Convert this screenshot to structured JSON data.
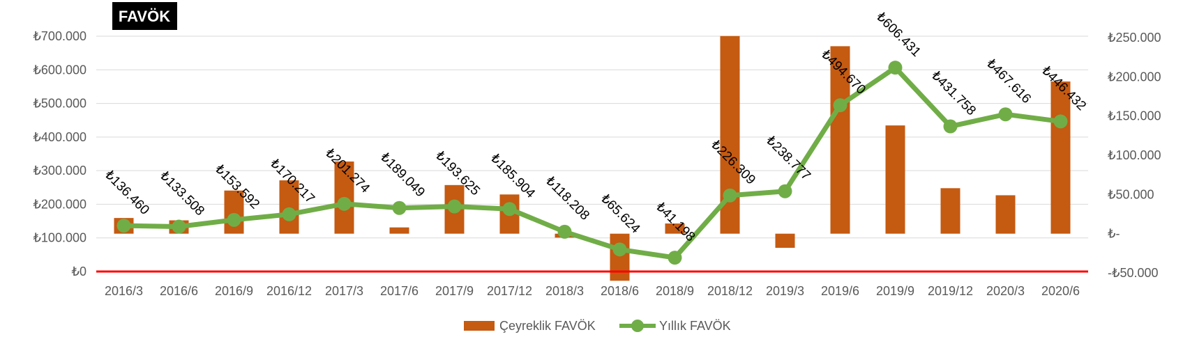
{
  "chart_data": {
    "type": "bar",
    "title": "FAVÖK",
    "categories": [
      "2016/3",
      "2016/6",
      "2016/9",
      "2016/12",
      "2017/3",
      "2017/6",
      "2017/9",
      "2017/12",
      "2018/3",
      "2018/6",
      "2018/9",
      "2018/12",
      "2019/3",
      "2019/6",
      "2019/9",
      "2019/12",
      "2020/3",
      "2020/6"
    ],
    "series": [
      {
        "name": "Çeyreklik FAVÖK",
        "type": "bar",
        "axis": "left",
        "color": "#C55A11",
        "values": [
          20000,
          17000,
          55000,
          68000,
          92000,
          8000,
          62000,
          50000,
          -5000,
          -60000,
          13000,
          252000,
          -18000,
          239000,
          138000,
          58000,
          49000,
          194000
        ]
      },
      {
        "name": "Yıllık FAVÖK",
        "type": "line",
        "axis": "right",
        "color": "#70AD47",
        "values": [
          136460,
          133508,
          153592,
          170217,
          201274,
          189049,
          193625,
          185904,
          118208,
          65624,
          41198,
          226309,
          238777,
          494670,
          606431,
          431758,
          467616,
          446432
        ],
        "labels": [
          "₺136.460",
          "₺133.508",
          "₺153.592",
          "₺170.217",
          "₺201.274",
          "₺189.049",
          "₺193.625",
          "₺185.904",
          "₺118.208",
          "₺65.624",
          "₺41.198",
          "₺226.309",
          "₺238.777",
          "₺494.670",
          "₺606.431",
          "₺431.758",
          "₺467.616",
          "₺446.432"
        ]
      }
    ],
    "left_axis": {
      "ticks": [
        0,
        100000,
        200000,
        300000,
        400000,
        500000,
        600000,
        700000
      ],
      "tick_labels": [
        "₺0",
        "₺100.000",
        "₺200.000",
        "₺300.000",
        "₺400.000",
        "₺500.000",
        "₺600.000",
        "₺700.000"
      ]
    },
    "right_axis": {
      "ticks": [
        -50000,
        0,
        50000,
        100000,
        150000,
        200000,
        250000
      ],
      "tick_labels": [
        "-₺50.000",
        "₺-",
        "₺50.000",
        "₺100.000",
        "₺150.000",
        "₺200.000",
        "₺250.000"
      ]
    },
    "grid": true,
    "zero_line_color": "#FF0000",
    "legend_position": "bottom"
  }
}
